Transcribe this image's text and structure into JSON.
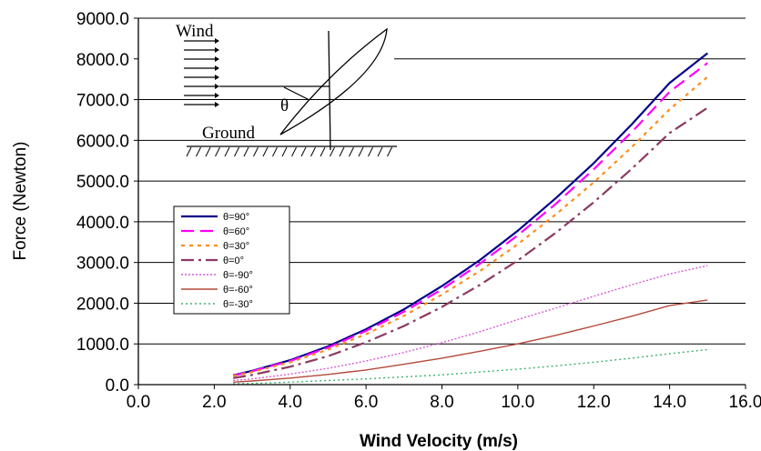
{
  "chart_data": {
    "type": "line",
    "title": "",
    "xlabel": "Wind Velocity (m/s)",
    "ylabel": "Force (Newton)",
    "xlim": [
      0,
      16
    ],
    "ylim": [
      0,
      9000
    ],
    "xticks": [
      "0.0",
      "2.0",
      "4.0",
      "6.0",
      "8.0",
      "10.0",
      "12.0",
      "14.0",
      "16.0"
    ],
    "yticks": [
      "0.0",
      "1000.0",
      "2000.0",
      "3000.0",
      "4000.0",
      "5000.0",
      "6000.0",
      "7000.0",
      "8000.0",
      "9000.0"
    ],
    "grid": "horizontal",
    "legend_position": "left-middle",
    "x": [
      2.5,
      3.0,
      4.0,
      5.0,
      6.0,
      7.0,
      8.0,
      9.0,
      10.0,
      11.0,
      12.0,
      13.0,
      14.0,
      15.0
    ],
    "series": [
      {
        "name": "θ=90°",
        "color": "#00008b",
        "dash": "",
        "width": 2.2,
        "values": [
          230,
          340,
          600,
          940,
          1360,
          1850,
          2420,
          3060,
          3780,
          4580,
          5440,
          6390,
          7410,
          8140
        ]
      },
      {
        "name": "θ=60°",
        "color": "#ff00ff",
        "dash": "14,7",
        "width": 2.2,
        "values": [
          220,
          330,
          580,
          910,
          1320,
          1790,
          2340,
          2970,
          3670,
          4440,
          5290,
          6200,
          7190,
          7900
        ]
      },
      {
        "name": "θ=30°",
        "color": "#ff8c1a",
        "dash": "4,5",
        "width": 2.2,
        "values": [
          210,
          310,
          550,
          860,
          1240,
          1690,
          2210,
          2790,
          3450,
          4180,
          4970,
          5830,
          6760,
          7560
        ]
      },
      {
        "name": "θ=0°",
        "color": "#8b3a62",
        "dash": "14,5,3,5",
        "width": 2.2,
        "values": [
          160,
          240,
          440,
          700,
          1040,
          1440,
          1910,
          2450,
          3050,
          3730,
          4480,
          5300,
          6180,
          6800
        ]
      },
      {
        "name": "θ=-90°",
        "color": "#d85ad8",
        "dash": "2,2",
        "width": 1.4,
        "values": [
          100,
          140,
          260,
          400,
          580,
          790,
          1030,
          1300,
          1600,
          1880,
          2170,
          2450,
          2720,
          2920
        ]
      },
      {
        "name": "θ=-60°",
        "color": "#b44a3a",
        "dash": "",
        "width": 1.4,
        "values": [
          60,
          90,
          160,
          250,
          360,
          500,
          650,
          820,
          1000,
          1210,
          1440,
          1680,
          1940,
          2080
        ]
      },
      {
        "name": "θ=-30°",
        "color": "#3cb371",
        "dash": "2,3",
        "width": 1.4,
        "values": [
          20,
          30,
          60,
          100,
          140,
          190,
          240,
          310,
          380,
          460,
          550,
          650,
          760,
          860
        ]
      }
    ],
    "inset": {
      "wind_label": "Wind",
      "ground_label": "Ground",
      "angle_label": "θ"
    }
  }
}
